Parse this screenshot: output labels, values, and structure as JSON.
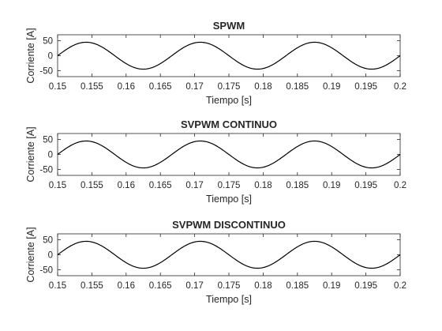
{
  "chart_data": [
    {
      "type": "line",
      "title": "SPWM",
      "xlabel": "Tiempo [s]",
      "ylabel": "Corriente [A]",
      "xlim": [
        0.15,
        0.2
      ],
      "ylim": [
        -70,
        70
      ],
      "xticks": [
        "0.15",
        "0.155",
        "0.16",
        "0.165",
        "0.17",
        "0.175",
        "0.18",
        "0.185",
        "0.19",
        "0.195",
        "0.2"
      ],
      "yticks": [
        "50",
        "0",
        "-50"
      ],
      "series": [
        {
          "amplitude": 45,
          "frequency_hz": 60,
          "x": [
            0.15,
            0.1542,
            0.1583,
            0.1625,
            0.1667,
            0.1708,
            0.175,
            0.1792,
            0.1833,
            0.1875,
            0.1917,
            0.1958,
            0.2
          ],
          "y": [
            0,
            45,
            0,
            -45,
            0,
            45,
            0,
            -45,
            0,
            45,
            0,
            -45,
            0
          ]
        }
      ]
    },
    {
      "type": "line",
      "title": "SVPWM CONTINUO",
      "xlabel": "Tiempo [s]",
      "ylabel": "Corriente [A]",
      "xlim": [
        0.15,
        0.2
      ],
      "ylim": [
        -70,
        70
      ],
      "xticks": [
        "0.15",
        "0.155",
        "0.16",
        "0.165",
        "0.17",
        "0.175",
        "0.18",
        "0.185",
        "0.19",
        "0.195",
        "0.2"
      ],
      "yticks": [
        "50",
        "0",
        "-50"
      ],
      "series": [
        {
          "amplitude": 45,
          "frequency_hz": 60,
          "x": [
            0.15,
            0.1542,
            0.1583,
            0.1625,
            0.1667,
            0.1708,
            0.175,
            0.1792,
            0.1833,
            0.1875,
            0.1917,
            0.1958,
            0.2
          ],
          "y": [
            0,
            45,
            0,
            -45,
            0,
            45,
            0,
            -45,
            0,
            45,
            0,
            -45,
            0
          ]
        }
      ]
    },
    {
      "type": "line",
      "title": "SVPWM DISCONTINUO",
      "xlabel": "Tiempo [s]",
      "ylabel": "Corriente [A]",
      "xlim": [
        0.15,
        0.2
      ],
      "ylim": [
        -70,
        70
      ],
      "xticks": [
        "0.15",
        "0.155",
        "0.16",
        "0.165",
        "0.17",
        "0.175",
        "0.18",
        "0.185",
        "0.19",
        "0.195",
        "0.2"
      ],
      "yticks": [
        "50",
        "0",
        "-50"
      ],
      "series": [
        {
          "amplitude": 45,
          "frequency_hz": 60,
          "x": [
            0.15,
            0.1542,
            0.1583,
            0.1625,
            0.1667,
            0.1708,
            0.175,
            0.1792,
            0.1833,
            0.1875,
            0.1917,
            0.1958,
            0.2
          ],
          "y": [
            0,
            45,
            0,
            -45,
            0,
            45,
            0,
            -45,
            0,
            45,
            0,
            -45,
            0
          ]
        }
      ]
    }
  ],
  "colors": {
    "line": "#000000",
    "axis": "#262626",
    "background": "#ffffff"
  }
}
